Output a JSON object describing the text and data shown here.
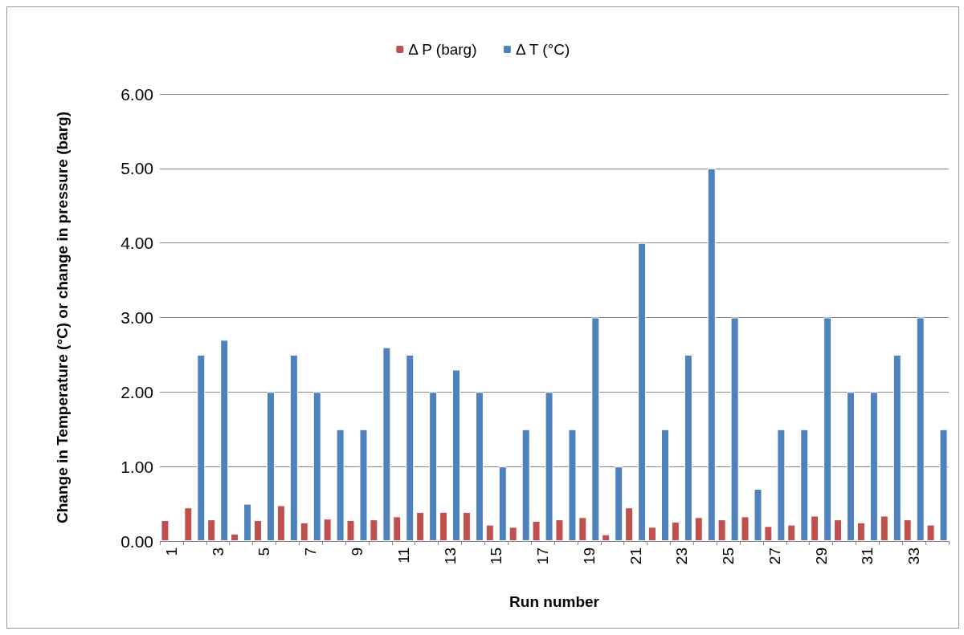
{
  "chart_data": {
    "type": "bar",
    "xlabel": "Run number",
    "ylabel": "Change in Temperature (°C) or change in pressure (barg)",
    "categories": [
      "1",
      null,
      "3",
      null,
      "5",
      null,
      "7",
      null,
      "9",
      null,
      "11",
      null,
      "13",
      null,
      "15",
      null,
      "17",
      null,
      "19",
      null,
      "21",
      null,
      "23",
      null,
      "25",
      null,
      "27",
      null,
      "29",
      null,
      "31",
      null,
      "33",
      null
    ],
    "series": [
      {
        "name": "Δ P (barg)",
        "color": "#c0504d",
        "values": [
          0.28,
          0.45,
          0.29,
          0.1,
          0.28,
          0.48,
          0.25,
          0.3,
          0.28,
          0.29,
          0.33,
          0.39,
          0.39,
          0.39,
          0.22,
          0.19,
          0.27,
          0.29,
          0.32,
          0.09,
          0.45,
          0.19,
          0.26,
          0.32,
          0.29,
          0.33,
          0.2,
          0.22,
          0.34,
          0.29,
          0.25,
          0.34,
          0.29,
          0.22
        ]
      },
      {
        "name": "Δ T (°C)",
        "color": "#4f81bd",
        "values": [
          null,
          2.5,
          2.7,
          0.5,
          2.0,
          2.5,
          2.0,
          1.5,
          1.5,
          2.6,
          2.5,
          2.0,
          2.3,
          2.0,
          1.0,
          1.5,
          2.0,
          1.5,
          3.0,
          1.0,
          4.0,
          1.5,
          2.5,
          5.0,
          3.0,
          0.7,
          1.5,
          1.5,
          3.0,
          2.0,
          2.0,
          2.5,
          3.0,
          1.5
        ]
      }
    ],
    "ylim": [
      0,
      6
    ],
    "yticks": [
      {
        "value": 0,
        "label": "0.00"
      },
      {
        "value": 1,
        "label": "1.00"
      },
      {
        "value": 2,
        "label": "2.00"
      },
      {
        "value": 3,
        "label": "3.00"
      },
      {
        "value": 4,
        "label": "4.00"
      },
      {
        "value": 5,
        "label": "5.00"
      },
      {
        "value": 6,
        "label": "6.00"
      }
    ],
    "grid": "y",
    "legend": "top"
  }
}
